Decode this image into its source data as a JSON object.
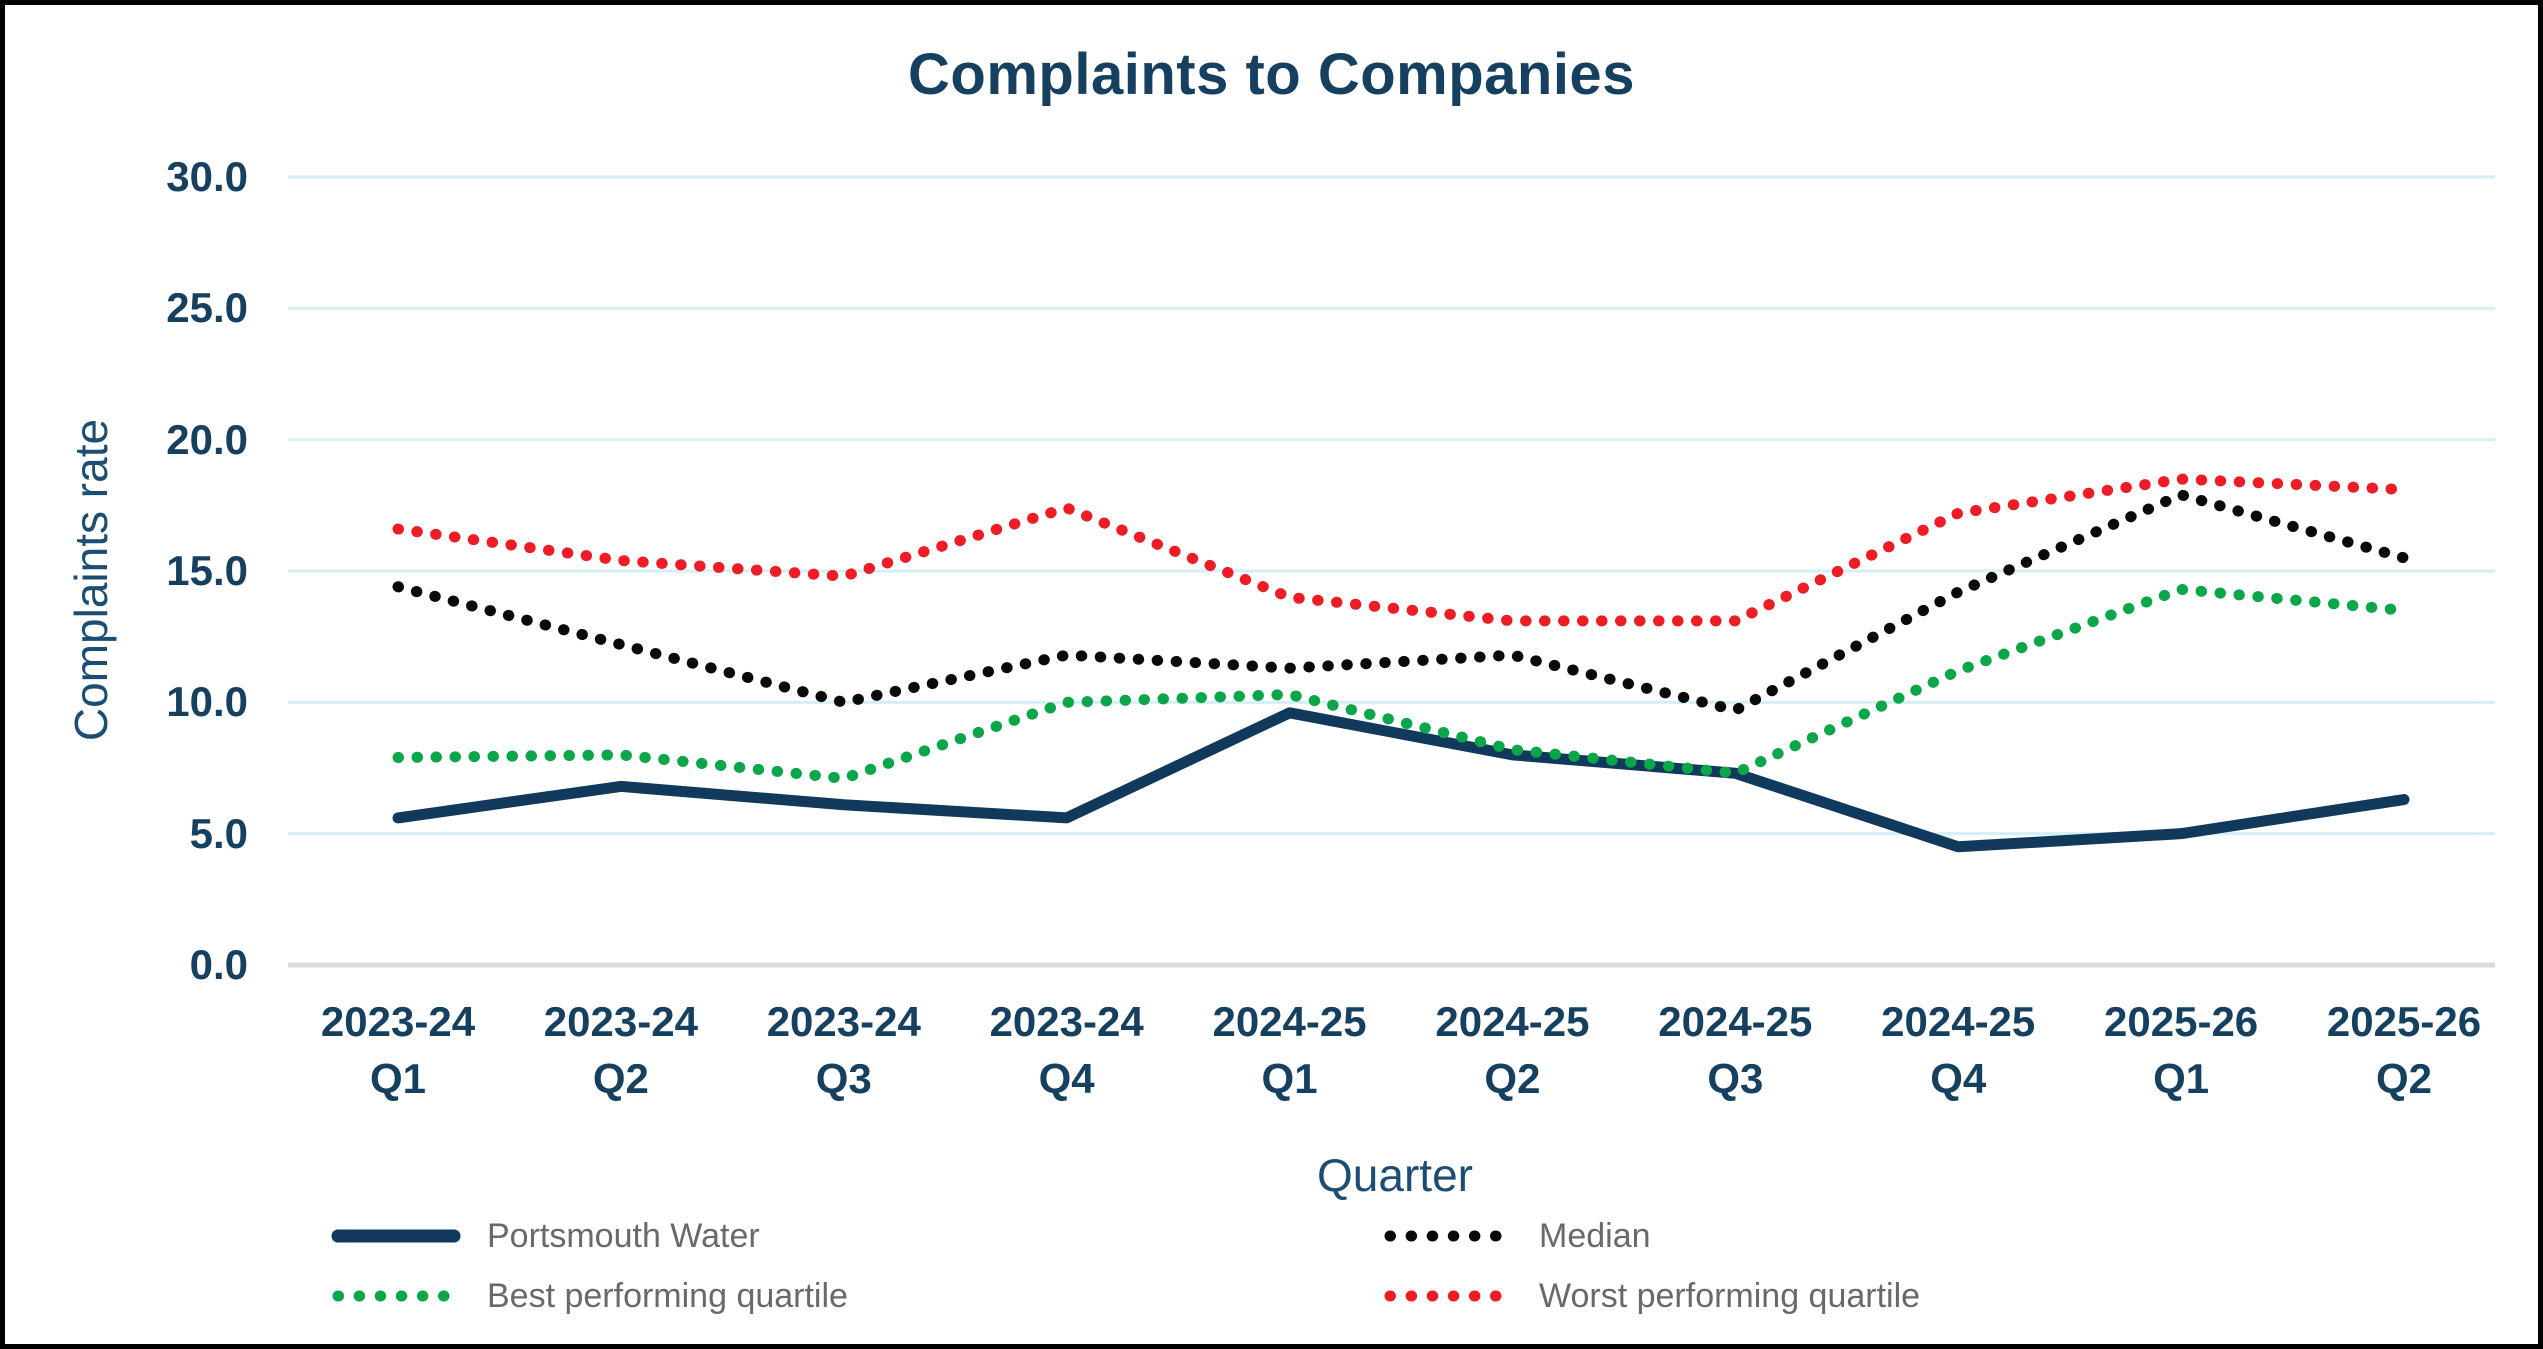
{
  "title": "Complaints to Companies",
  "y_axis": {
    "title": "Complaints rate",
    "tick_labels": [
      "30.0",
      "25.0",
      "20.0",
      "15.0",
      "10.0",
      "5.0",
      "0.0"
    ],
    "max": 30,
    "min": 0,
    "step": 5
  },
  "x_axis": {
    "title": "Quarter",
    "tick_labels": [
      "2023-24\nQ1",
      "2023-24\nQ2",
      "2023-24\nQ3",
      "2023-24\nQ4",
      "2024-25\nQ1",
      "2024-25\nQ2",
      "2024-25\nQ3",
      "2024-25\nQ4",
      "2025-26\nQ1",
      "2025-26\nQ2"
    ]
  },
  "legend": {
    "items": [
      {
        "label": "Portsmouth Water",
        "style": "solid",
        "color": "#11395B",
        "row": 0,
        "col": 0
      },
      {
        "label": "Median",
        "style": "dotted",
        "color": "#0A0A0A",
        "row": 0,
        "col": 1
      },
      {
        "label": "Best performing quartile",
        "style": "dotted",
        "color": "#0CA64A",
        "row": 1,
        "col": 0
      },
      {
        "label": "Worst performing quartile",
        "style": "dotted",
        "color": "#EE1C25",
        "row": 1,
        "col": 1
      }
    ]
  },
  "colors": {
    "title_text": "#16405F",
    "tick_text": "#16405F",
    "axis_title_text": "#1C4E74",
    "gridline": "#D4EFF5",
    "zero_line": "#DBDBDB",
    "legend_text": "#696969",
    "portsmouth": "#11395B",
    "median": "#0A0A0A",
    "best_quartile": "#0CA64A",
    "worst_quartile": "#EE1C25"
  },
  "chart_data": {
    "type": "line",
    "title": "Complaints to Companies",
    "xlabel": "Quarter",
    "ylabel": "Complaints rate",
    "ylim": [
      0,
      30
    ],
    "y_tick_step": 5,
    "grid": "horizontal",
    "legend_position": "bottom",
    "categories": [
      "2023-24 Q1",
      "2023-24 Q2",
      "2023-24 Q3",
      "2023-24 Q4",
      "2024-25 Q1",
      "2024-25 Q2",
      "2024-25 Q3",
      "2024-25 Q4",
      "2025-26 Q1",
      "2025-26 Q2"
    ],
    "series": [
      {
        "name": "Portsmouth Water",
        "style": "solid",
        "color": "#11395B",
        "values": [
          5.6,
          6.8,
          6.1,
          5.6,
          9.6,
          8.0,
          7.3,
          4.5,
          5.0,
          6.3
        ]
      },
      {
        "name": "Median",
        "style": "dotted",
        "color": "#0A0A0A",
        "values": [
          14.4,
          12.2,
          10.0,
          11.8,
          11.3,
          11.8,
          9.7,
          14.2,
          17.9,
          15.5
        ]
      },
      {
        "name": "Best performing quartile",
        "style": "dotted",
        "color": "#0CA64A",
        "values": [
          7.9,
          8.0,
          7.1,
          10.0,
          10.3,
          8.2,
          7.3,
          11.2,
          14.3,
          13.5
        ]
      },
      {
        "name": "Worst performing quartile",
        "style": "dotted",
        "color": "#EE1C25",
        "values": [
          16.6,
          15.4,
          14.8,
          17.4,
          14.0,
          13.1,
          13.1,
          17.2,
          18.5,
          18.1
        ]
      }
    ]
  }
}
